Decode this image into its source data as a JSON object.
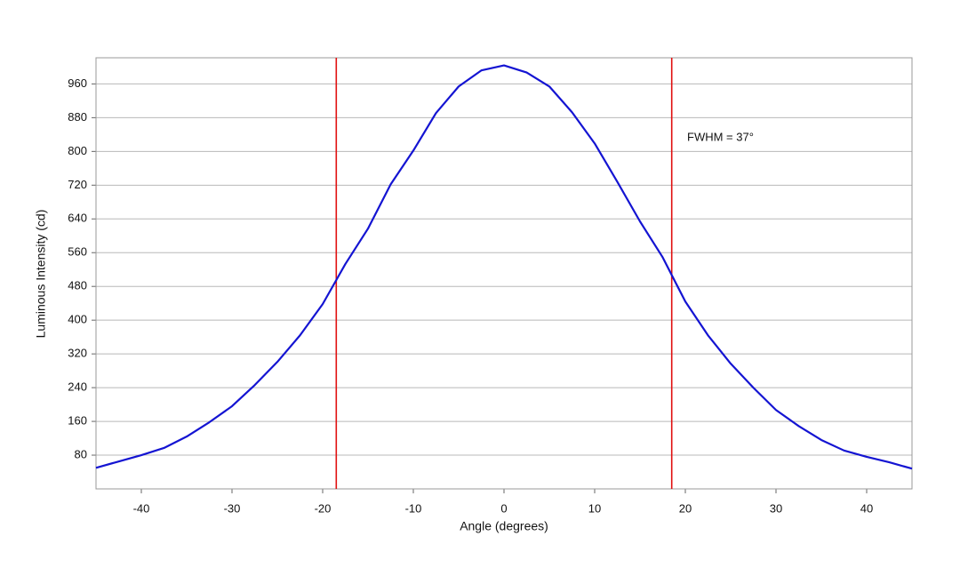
{
  "chart_data": {
    "type": "line",
    "x_label": "Angle (degrees)",
    "y_label": "Luminous Intensity (cd)",
    "annotation": "FWHM = 37°",
    "x": [
      -45,
      -42.5,
      -40,
      -37.5,
      -35,
      -32.5,
      -30,
      -27.5,
      -25,
      -22.5,
      -20,
      -17.5,
      -15,
      -12.5,
      -10,
      -7.5,
      -5,
      -2.5,
      0,
      2.5,
      5,
      7.5,
      10,
      12.5,
      15,
      17.5,
      20,
      22.5,
      25,
      27.5,
      30,
      32.5,
      35,
      37.5,
      40,
      42.5,
      45
    ],
    "series": [
      {
        "name": "Luminous Intensity",
        "color": "#1414d2",
        "values": [
          50,
          65,
          80,
          97,
          124,
          158,
          196,
          246,
          301,
          364,
          438,
          533,
          617,
          722,
          802,
          891,
          954,
          992,
          1004,
          987,
          954,
          893,
          819,
          728,
          634,
          549,
          444,
          364,
          297,
          240,
          187,
          149,
          116,
          91,
          76,
          63,
          48
        ]
      }
    ],
    "vlines": [
      -18.5,
      18.5
    ],
    "vline_color": "#e01010",
    "xlim": [
      -45,
      45
    ],
    "ylim": [
      0,
      1022
    ],
    "xticks": [
      -40,
      -30,
      -20,
      -10,
      0,
      10,
      20,
      30,
      40
    ],
    "yticks": [
      80,
      160,
      240,
      320,
      400,
      480,
      560,
      640,
      720,
      800,
      880,
      960
    ],
    "grid": true
  }
}
